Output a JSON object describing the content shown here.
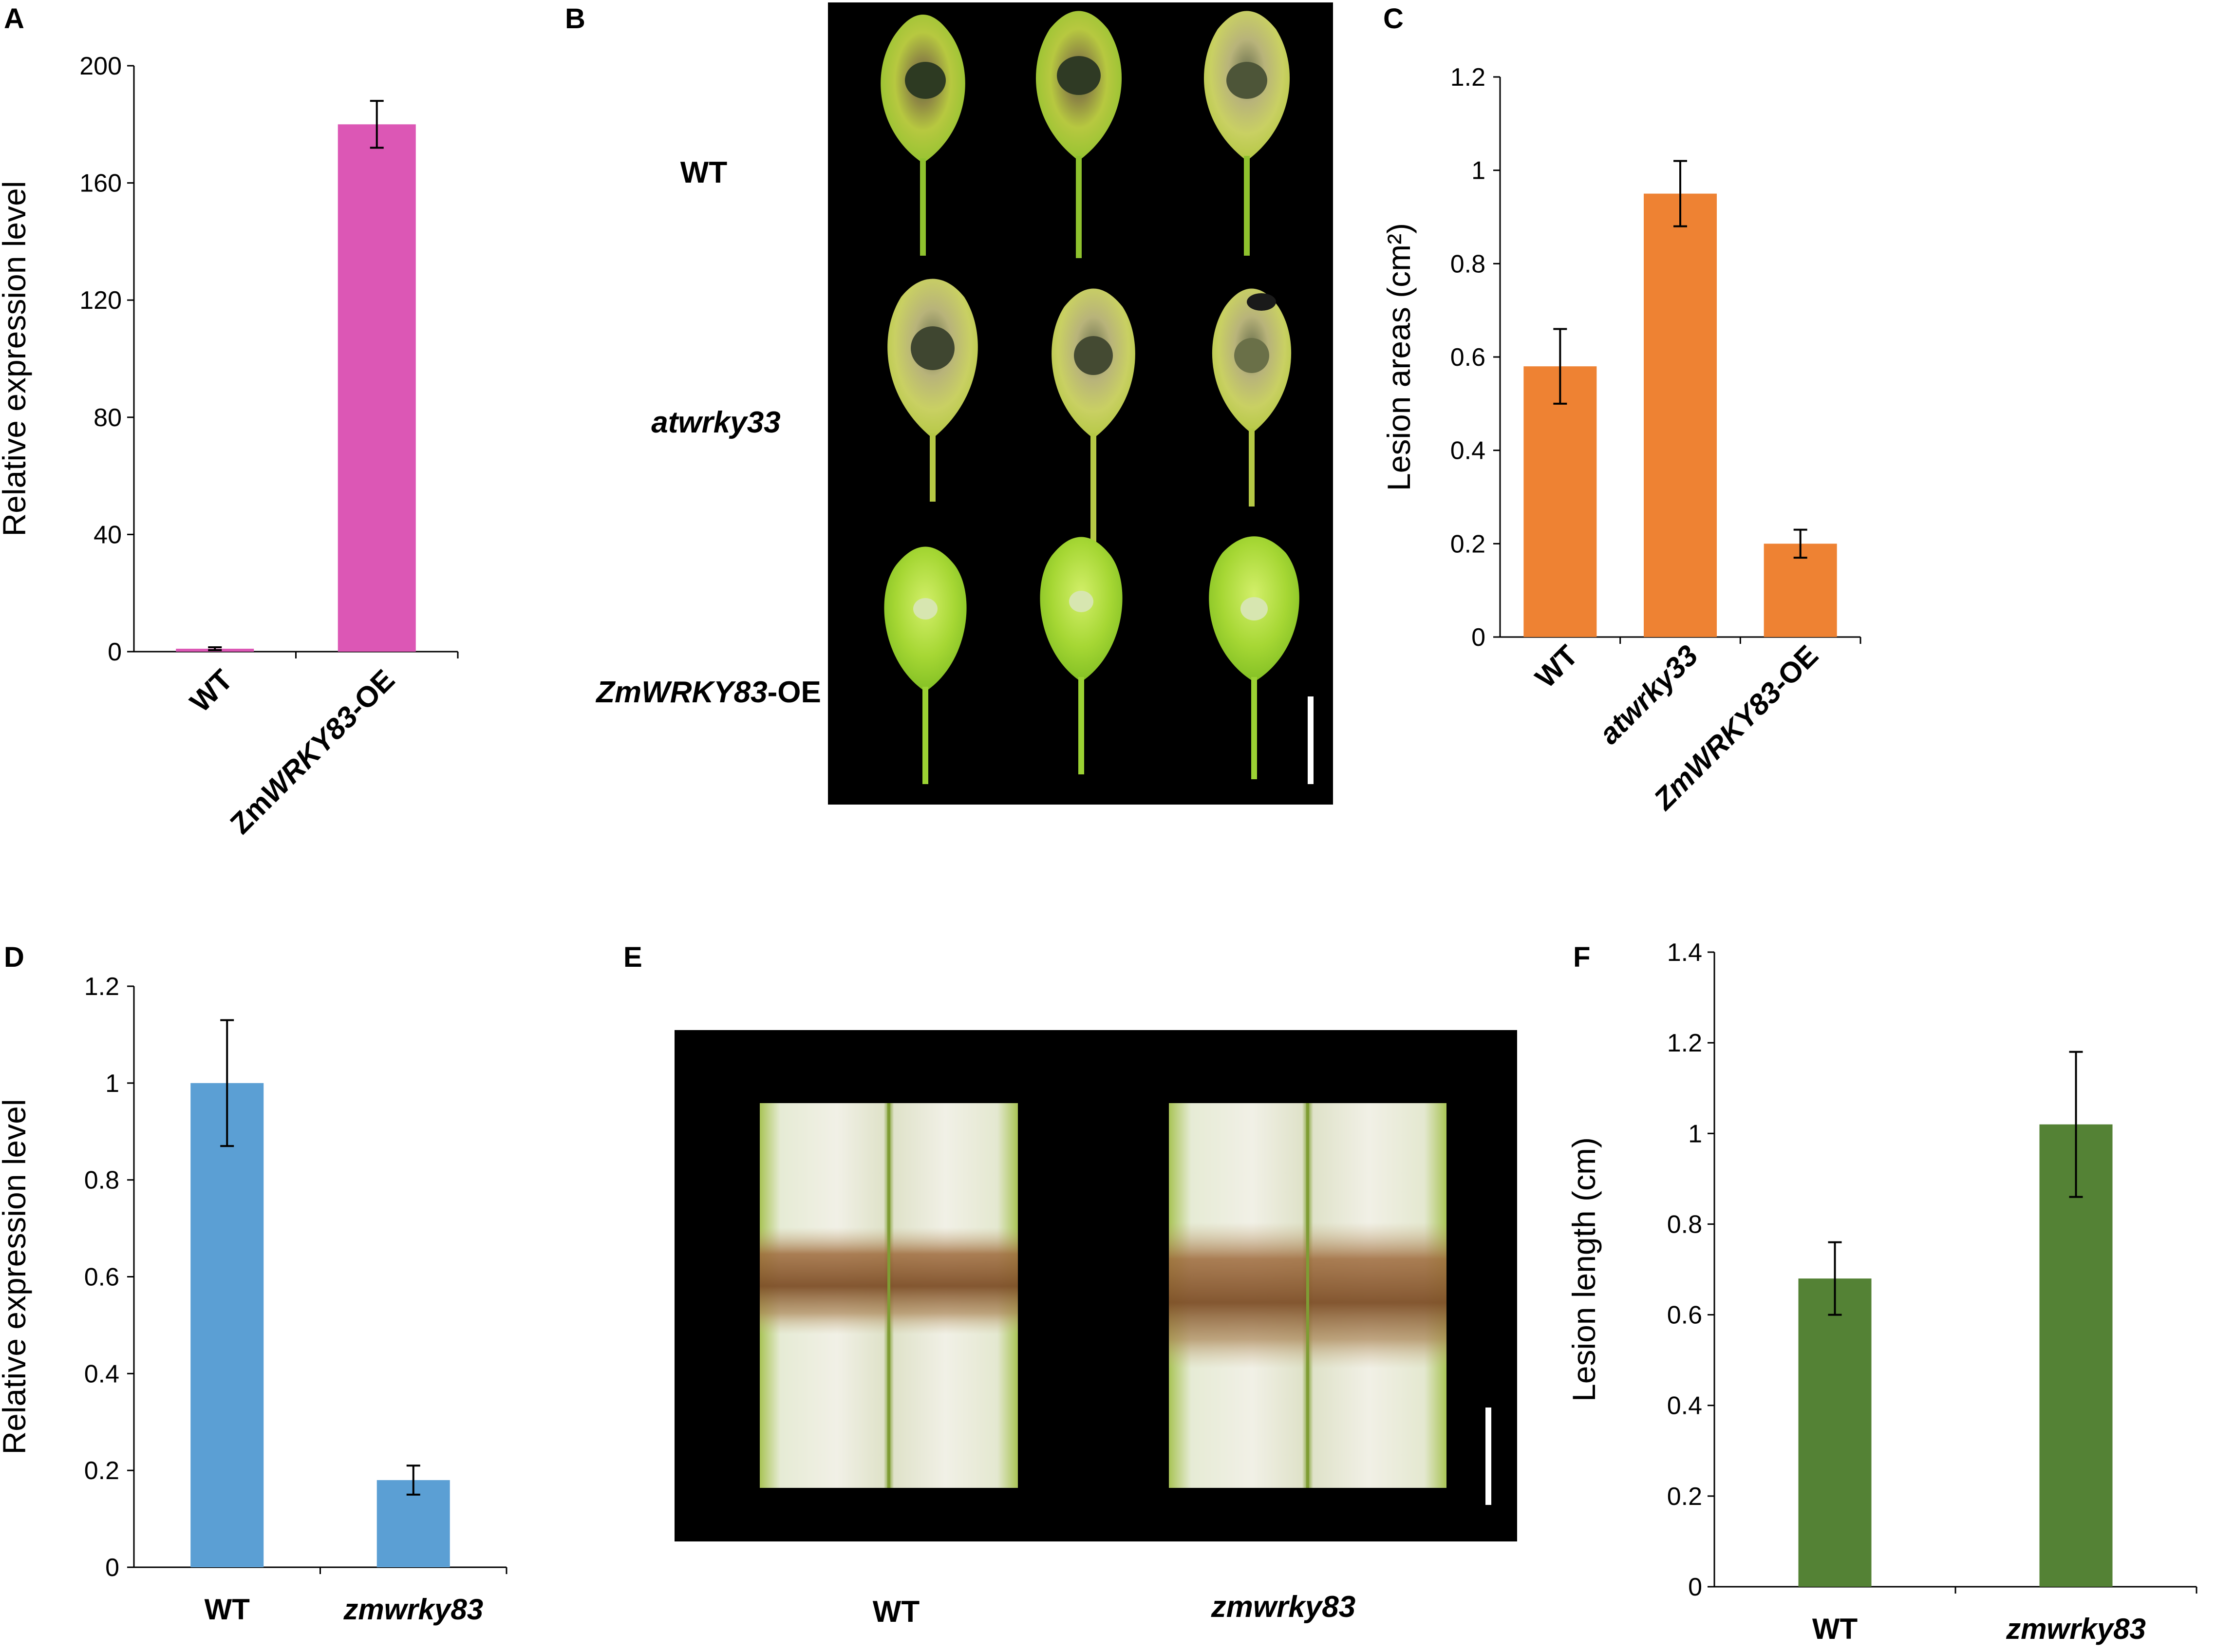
{
  "panels": {
    "A": {
      "letter": "A"
    },
    "B": {
      "letter": "B",
      "row_labels": [
        {
          "pre": "WT",
          "it": "",
          "post": ""
        },
        {
          "pre": "",
          "it": "atwrky33",
          "post": ""
        },
        {
          "pre": "",
          "it": "ZmWRKY83",
          "post": "-OE"
        }
      ]
    },
    "C": {
      "letter": "C"
    },
    "D": {
      "letter": "D"
    },
    "E": {
      "letter": "E",
      "labels": [
        {
          "text": "WT",
          "italic": false
        },
        {
          "text": "zmwrky83",
          "italic": true
        }
      ]
    },
    "F": {
      "letter": "F"
    }
  },
  "colors": {
    "A": "#dc57b5",
    "C": "#ee8233",
    "D": "#5b9fd4",
    "F": "#548235",
    "photo_bg": "#000000"
  },
  "chart_data": [
    {
      "id": "A",
      "type": "bar",
      "categories": [
        {
          "pre": "WT",
          "it": "",
          "post": ""
        },
        {
          "pre": "Zm",
          "it": "WRKY83",
          "post": "-OE"
        }
      ],
      "values": [
        1,
        180
      ],
      "errors": [
        0.5,
        8
      ],
      "ylabel": "Relative expression level",
      "ylim": [
        0,
        200
      ],
      "ticks": [
        0,
        40,
        80,
        120,
        160,
        200
      ],
      "tick_labels": [
        "0",
        "40",
        "80",
        "120",
        "160",
        "200"
      ],
      "color": "#dc57b5",
      "rotated_labels": true
    },
    {
      "id": "C",
      "type": "bar",
      "categories": [
        {
          "pre": "WT",
          "it": "",
          "post": ""
        },
        {
          "pre": "",
          "it": "atwrky33",
          "post": ""
        },
        {
          "pre": "",
          "it": "ZmWRKY83",
          "post": "-OE"
        }
      ],
      "values": [
        0.58,
        0.95,
        0.2
      ],
      "errors": [
        0.08,
        0.07,
        0.03
      ],
      "ylabel": "Lesion areas (cm²)",
      "ylim": [
        0,
        1.2
      ],
      "ticks": [
        0,
        0.2,
        0.4,
        0.6,
        0.8,
        1,
        1.2
      ],
      "tick_labels": [
        "0",
        "0.2",
        "0.4",
        "0.6",
        "0.8",
        "1",
        "1.2"
      ],
      "color": "#ee8233",
      "rotated_labels": true
    },
    {
      "id": "D",
      "type": "bar",
      "categories": [
        {
          "pre": "WT",
          "it": "",
          "post": ""
        },
        {
          "pre": "",
          "it": "zmwrky83",
          "post": ""
        }
      ],
      "values": [
        1.0,
        0.18
      ],
      "errors": [
        0.13,
        0.03
      ],
      "ylabel": "Relative expression level",
      "ylim": [
        0,
        1.2
      ],
      "ticks": [
        0,
        0.2,
        0.4,
        0.6,
        0.8,
        1,
        1.2
      ],
      "tick_labels": [
        "0",
        "0.2",
        "0.4",
        "0.6",
        "0.8",
        "1",
        "1.2"
      ],
      "color": "#5b9fd4",
      "rotated_labels": false
    },
    {
      "id": "F",
      "type": "bar",
      "categories": [
        {
          "pre": "WT",
          "it": "",
          "post": ""
        },
        {
          "pre": "",
          "it": "zmwrky83",
          "post": ""
        }
      ],
      "values": [
        0.68,
        1.02
      ],
      "errors": [
        0.08,
        0.16
      ],
      "ylabel": "Lesion length (cm)",
      "ylim": [
        0,
        1.4
      ],
      "ticks": [
        0,
        0.2,
        0.4,
        0.6,
        0.8,
        1,
        1.2,
        1.4
      ],
      "tick_labels": [
        "0",
        "0.2",
        "0.4",
        "0.6",
        "0.8",
        "1",
        "1.2",
        "1.4"
      ],
      "color": "#548235",
      "rotated_labels": false
    }
  ]
}
